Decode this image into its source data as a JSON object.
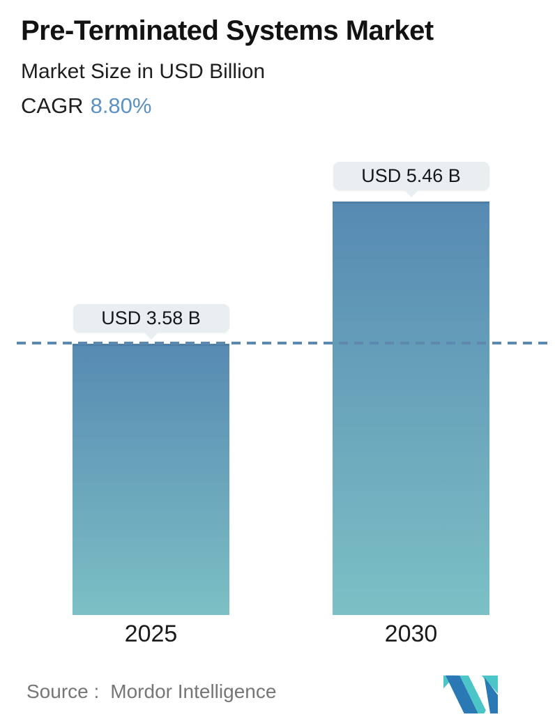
{
  "header": {
    "title": "Pre-Terminated Systems Market",
    "subtitle": "Market Size in USD Billion",
    "cagr_label": "CAGR",
    "cagr_value": "8.80%",
    "cagr_value_color": "#5b92c3"
  },
  "chart_data": {
    "type": "bar",
    "title": "Pre-Terminated Systems Market",
    "subtitle": "Market Size in USD Billion",
    "categories": [
      "2025",
      "2030"
    ],
    "values": [
      3.58,
      5.46
    ],
    "value_labels": [
      "USD 3.58 B",
      "USD 5.46 B"
    ],
    "unit": "USD Billion",
    "cagr": "8.80%",
    "ylim": [
      0,
      5.46
    ],
    "grid": false,
    "legend": false,
    "reference_line": {
      "value": 3.58,
      "style": "dashed",
      "color": "#5c89ad"
    },
    "bar_style": {
      "gradient_top": "#578ab2",
      "gradient_bottom": "#7cc0c5",
      "top_edge": "#4d7ea6",
      "label_bg": "#e9eef1"
    }
  },
  "footer": {
    "source_label": "Source :",
    "source_value": "Mordor Intelligence",
    "logo_name": "mordor-intelligence-logo",
    "logo_colors": {
      "blue": "#2a79b5",
      "teal": "#4cc5c9"
    }
  }
}
